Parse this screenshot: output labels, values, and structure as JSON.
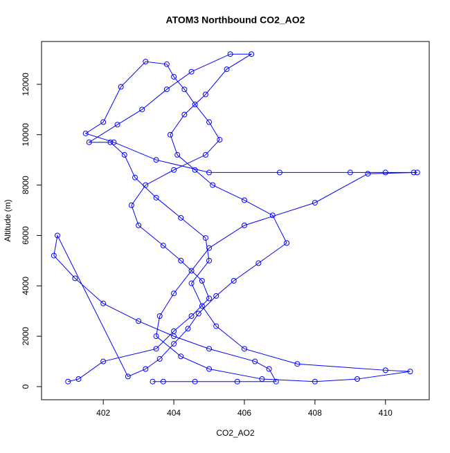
{
  "chart_data": {
    "type": "line",
    "title": "ATOM3 Northbound CO2_AO2",
    "x_label": "CO2_AO2",
    "y_label": "Altitude (m)",
    "color": "#0000ff",
    "markers": true,
    "x": [
      401.0,
      401.3,
      402.0,
      403.5,
      404.0,
      404.5,
      405.0,
      404.8,
      404.2,
      403.7,
      403.0,
      402.8,
      403.2,
      404.0,
      404.9,
      405.3,
      405.0,
      404.6,
      404.3,
      404.0,
      403.8,
      403.2,
      402.5,
      402.0,
      401.5,
      402.3,
      403.5,
      405.0,
      407.0,
      409.0,
      410.0,
      410.8,
      410.9,
      409.5,
      408.0,
      406.0,
      405.0,
      404.5,
      404.0,
      403.6,
      403.5,
      404.2,
      405.0,
      406.5,
      408.0,
      409.2,
      410.7,
      410.0,
      407.5,
      406.0,
      405.2,
      404.8,
      404.5,
      405.0,
      404.9,
      404.2,
      403.5,
      402.9,
      402.6,
      402.2,
      401.6,
      402.4,
      403.1,
      403.8,
      404.5,
      405.6,
      406.2,
      405.5,
      404.9,
      404.3,
      403.9,
      404.1,
      404.6,
      405.1,
      406.0,
      406.8,
      407.2,
      406.4,
      405.7,
      405.2,
      404.7,
      404.4,
      404.0,
      403.6,
      403.2,
      402.7,
      400.7,
      400.6,
      401.2,
      402.0,
      403.0,
      404.0,
      405.0,
      406.3,
      406.7,
      406.9,
      405.8,
      404.6,
      403.7,
      403.4
    ],
    "values": [
      200,
      300,
      1000,
      1500,
      2200,
      2800,
      3500,
      4200,
      5000,
      5600,
      6400,
      7200,
      8000,
      8600,
      9200,
      9800,
      10500,
      11200,
      11800,
      12300,
      12800,
      12900,
      11900,
      10500,
      10050,
      9700,
      9000,
      8500,
      8500,
      8500,
      8500,
      8500,
      8500,
      8450,
      7300,
      6400,
      5500,
      4600,
      3700,
      2800,
      2000,
      1200,
      700,
      300,
      200,
      300,
      600,
      650,
      900,
      1500,
      2400,
      3200,
      4100,
      5000,
      5900,
      6700,
      7500,
      8300,
      9200,
      9700,
      9700,
      10400,
      11000,
      11800,
      12500,
      13200,
      13200,
      12600,
      11600,
      10800,
      10000,
      9200,
      8600,
      8000,
      7400,
      6800,
      5700,
      4900,
      4200,
      3600,
      2900,
      2300,
      1700,
      1100,
      700,
      400,
      6000,
      5200,
      4300,
      3300,
      2600,
      2000,
      1500,
      1000,
      700,
      200,
      200,
      200,
      200,
      200
    ],
    "xlim": [
      400.25,
      411.24
    ],
    "ylim": [
      -522,
      13700
    ],
    "xticks": [
      402,
      404,
      406,
      408,
      410
    ],
    "yticks": [
      0,
      2000,
      4000,
      6000,
      8000,
      10000,
      12000
    ]
  }
}
